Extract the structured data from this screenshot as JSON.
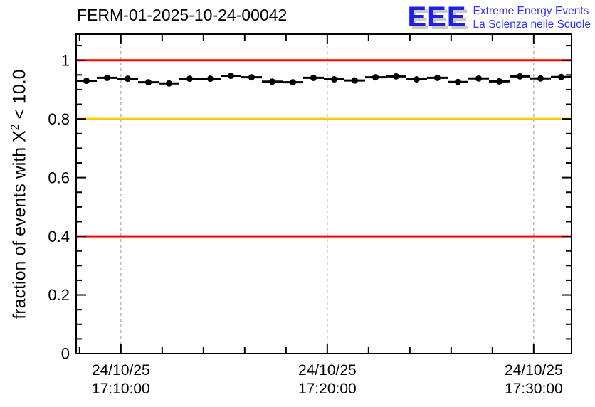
{
  "header": {
    "title": "FERM-01-2025-10-24-00042"
  },
  "logo": {
    "eee": "EEE",
    "line1": "Extreme Energy Events",
    "line2": "La Scienza nelle Scuole",
    "eee_color": "#2020e0",
    "text_color": "#3333ff"
  },
  "ylabel_parts": {
    "prefix": "fraction of events with X",
    "sup": "2",
    "suffix": " < 10.0"
  },
  "chart_data": {
    "type": "line",
    "title": "FERM-01-2025-10-24-00042",
    "xlabel": "",
    "ylabel": "fraction of events with X^2 < 10.0",
    "ylim": [
      0,
      1.089
    ],
    "xlim_seconds": [
      0,
      1440
    ],
    "x_time_origin": "24/10/25 17:07:50",
    "grid": "vertical dashed gridlines at x major ticks only",
    "legend": "none",
    "colors": {
      "frame": "#000000",
      "grid": "#b4b4b4",
      "marker": "#000000",
      "red_line": "#ff0000",
      "orange_line": "#ffcc00"
    },
    "y_major_ticks": [
      {
        "v": 0.0,
        "label": "0"
      },
      {
        "v": 0.2,
        "label": "0.2"
      },
      {
        "v": 0.4,
        "label": "0.4"
      },
      {
        "v": 0.6,
        "label": "0.6"
      },
      {
        "v": 0.8,
        "label": "0.8"
      },
      {
        "v": 1.0,
        "label": "1"
      }
    ],
    "y_minor_step": 0.05,
    "x_major_ticks": [
      {
        "t": 130,
        "date": "24/10/25",
        "time": "17:10:00"
      },
      {
        "t": 730,
        "date": "24/10/25",
        "time": "17:20:00"
      },
      {
        "t": 1330,
        "date": "24/10/25",
        "time": "17:30:00"
      }
    ],
    "x_minor_start": 10,
    "x_minor_step": 120,
    "reference_lines": [
      {
        "y": 1.0,
        "color": "#ff0000"
      },
      {
        "y": 0.8,
        "color": "#ffcc00"
      },
      {
        "y": 0.4,
        "color": "#ff0000"
      }
    ],
    "series": [
      {
        "name": "fraction of events with chi2 < 10",
        "marker": "filled-circle",
        "color": "#000000",
        "xerr_seconds": 30,
        "x_seconds": [
          30,
          90,
          150,
          210,
          270,
          330,
          390,
          450,
          510,
          570,
          630,
          690,
          750,
          810,
          870,
          930,
          990,
          1050,
          1110,
          1170,
          1230,
          1290,
          1350,
          1410
        ],
        "times": [
          "17:08:20",
          "17:09:20",
          "17:10:20",
          "17:11:20",
          "17:12:20",
          "17:13:20",
          "17:14:20",
          "17:15:20",
          "17:16:20",
          "17:17:20",
          "17:18:20",
          "17:19:20",
          "17:20:20",
          "17:21:20",
          "17:22:20",
          "17:23:20",
          "17:24:20",
          "17:25:20",
          "17:26:20",
          "17:27:20",
          "17:28:20",
          "17:29:20",
          "17:30:20",
          "17:31:20"
        ],
        "values": [
          0.93,
          0.94,
          0.937,
          0.925,
          0.921,
          0.937,
          0.937,
          0.947,
          0.942,
          0.927,
          0.925,
          0.94,
          0.935,
          0.931,
          0.942,
          0.945,
          0.935,
          0.94,
          0.926,
          0.938,
          0.928,
          0.945,
          0.938,
          0.943
        ]
      }
    ]
  }
}
